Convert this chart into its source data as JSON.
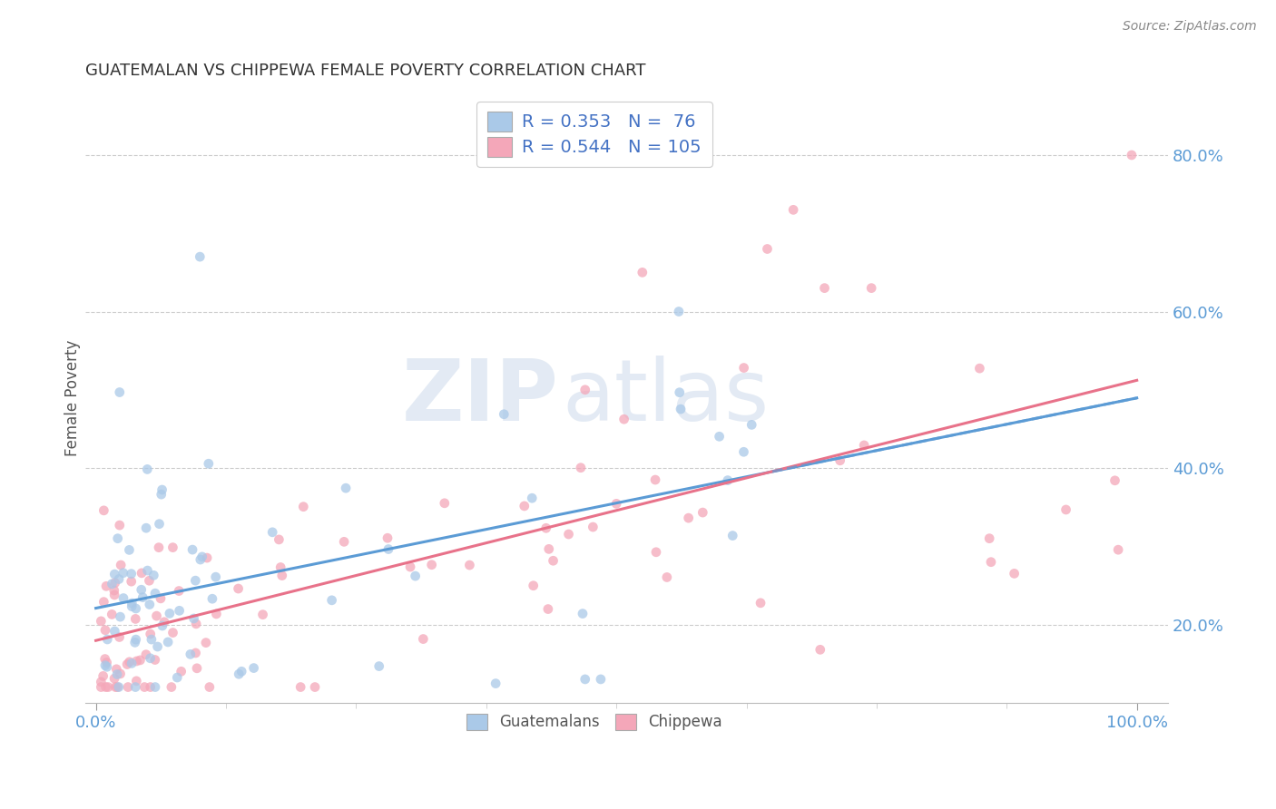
{
  "title": "GUATEMALAN VS CHIPPEWA FEMALE POVERTY CORRELATION CHART",
  "source": "Source: ZipAtlas.com",
  "ylabel": "Female Poverty",
  "ytick_values": [
    0.2,
    0.4,
    0.6,
    0.8
  ],
  "ytick_labels": [
    "20.0%",
    "40.0%",
    "60.0%",
    "80.0%"
  ],
  "xtick_values": [
    0.0,
    1.0
  ],
  "xtick_labels": [
    "0.0%",
    "100.0%"
  ],
  "xlim": [
    -0.01,
    1.03
  ],
  "ylim": [
    0.1,
    0.88
  ],
  "legend_entries": [
    {
      "label": "Guatemalans",
      "R": "0.353",
      "N": " 76",
      "color": "#aac9e8"
    },
    {
      "label": "Chippewa",
      "R": "0.544",
      "N": "105",
      "color": "#f4a7b9"
    }
  ],
  "guatemalan_color": "#aac9e8",
  "chippewa_color": "#f4a7b9",
  "guatemalan_line_color": "#5b9bd5",
  "chippewa_line_color": "#e8728a",
  "background_color": "#ffffff",
  "grid_color": "#cccccc",
  "tick_color": "#5b9bd5",
  "title_color": "#333333",
  "source_color": "#888888",
  "ylabel_color": "#555555",
  "watermark1": "ZIP",
  "watermark2": "atlas",
  "legend_text_color": "#4472c4",
  "bottom_legend_text_color": "#555555",
  "dot_size": 60,
  "dot_alpha": 0.75,
  "line_width": 2.2,
  "guat_seed": 42,
  "chip_seed": 99,
  "guat_intercept": 0.215,
  "guat_slope": 0.228,
  "chip_intercept": 0.175,
  "chip_slope": 0.27
}
